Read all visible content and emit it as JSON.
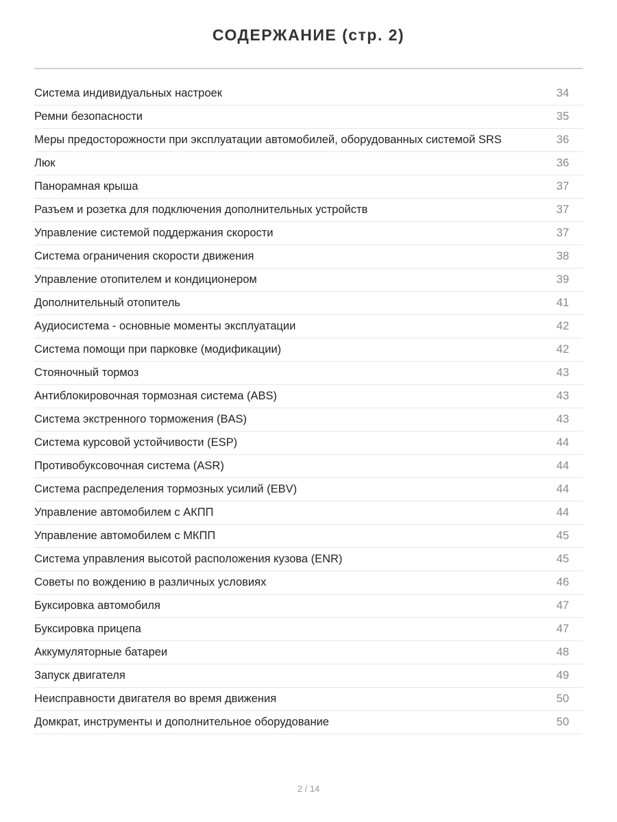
{
  "title": "СОДЕРЖАНИЕ (стр. 2)",
  "entries": [
    {
      "label": "Система индивидуальных настроек",
      "page": "34"
    },
    {
      "label": "Ремни безопасности",
      "page": "35"
    },
    {
      "label": "Меры предосторожности при эксплуатации автомобилей, оборудованных системой SRS",
      "page": "36"
    },
    {
      "label": "Люк",
      "page": "36"
    },
    {
      "label": "Панорамная крыша",
      "page": "37"
    },
    {
      "label": "Разъем и розетка для подключения дополнительных устройств",
      "page": "37"
    },
    {
      "label": "Управление системой поддержания скорости",
      "page": "37"
    },
    {
      "label": "Система ограничения скорости движения",
      "page": "38"
    },
    {
      "label": "Управление отопителем и кондиционером",
      "page": "39"
    },
    {
      "label": "Дополнительный отопитель",
      "page": "41"
    },
    {
      "label": "Аудиосистема - основные моменты эксплуатации",
      "page": "42"
    },
    {
      "label": "Система помощи при парковке (модификации)",
      "page": "42"
    },
    {
      "label": "Стояночный тормоз",
      "page": "43"
    },
    {
      "label": "Антиблокировочная тормозная система (ABS)",
      "page": "43"
    },
    {
      "label": "Система экстренного торможения (BAS)",
      "page": "43"
    },
    {
      "label": "Система курсовой устойчивости (ESP)",
      "page": "44"
    },
    {
      "label": "Противобуксовочная система (ASR)",
      "page": "44"
    },
    {
      "label": "Система распределения тормозных усилий (EBV)",
      "page": "44"
    },
    {
      "label": "Управление автомобилем с АКПП",
      "page": "44"
    },
    {
      "label": "Управление автомобилем с МКПП",
      "page": "45"
    },
    {
      "label": "Система управления высотой расположения кузова (ENR)",
      "page": "45"
    },
    {
      "label": "Советы по вождению в различных условиях",
      "page": "46"
    },
    {
      "label": "Буксировка автомобиля",
      "page": "47"
    },
    {
      "label": "Буксировка прицепа",
      "page": "47"
    },
    {
      "label": "Аккумуляторные батареи",
      "page": "48"
    },
    {
      "label": "Запуск двигателя",
      "page": "49"
    },
    {
      "label": "Неисправности двигателя во время движения",
      "page": "50"
    },
    {
      "label": "Домкрат, инструменты и дополнительное оборудование",
      "page": "50"
    }
  ],
  "footer": {
    "page_indicator": "2 / 14"
  }
}
